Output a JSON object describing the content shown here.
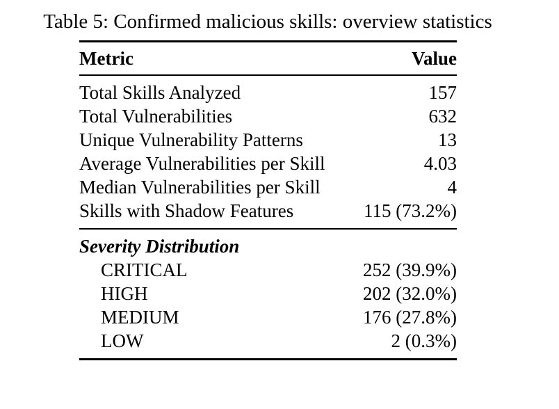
{
  "caption": "Table 5: Confirmed malicious skills: overview statistics",
  "table": {
    "columns": {
      "metric": "Metric",
      "value": "Value"
    },
    "rows": [
      {
        "metric": "Total Skills Analyzed",
        "value": "157"
      },
      {
        "metric": "Total Vulnerabilities",
        "value": "632"
      },
      {
        "metric": "Unique Vulnerability Patterns",
        "value": "13"
      },
      {
        "metric": "Average Vulnerabilities per Skill",
        "value": "4.03"
      },
      {
        "metric": "Median Vulnerabilities per Skill",
        "value": "4"
      },
      {
        "metric": "Skills with Shadow Features",
        "value": "115 (73.2%)"
      }
    ],
    "section": {
      "label": "Severity Distribution",
      "rows": [
        {
          "metric": "CRITICAL",
          "value": "252 (39.9%)"
        },
        {
          "metric": "HIGH",
          "value": "202 (32.0%)"
        },
        {
          "metric": "MEDIUM",
          "value": "176 (27.8%)"
        },
        {
          "metric": "LOW",
          "value": "2 (0.3%)"
        }
      ]
    }
  }
}
